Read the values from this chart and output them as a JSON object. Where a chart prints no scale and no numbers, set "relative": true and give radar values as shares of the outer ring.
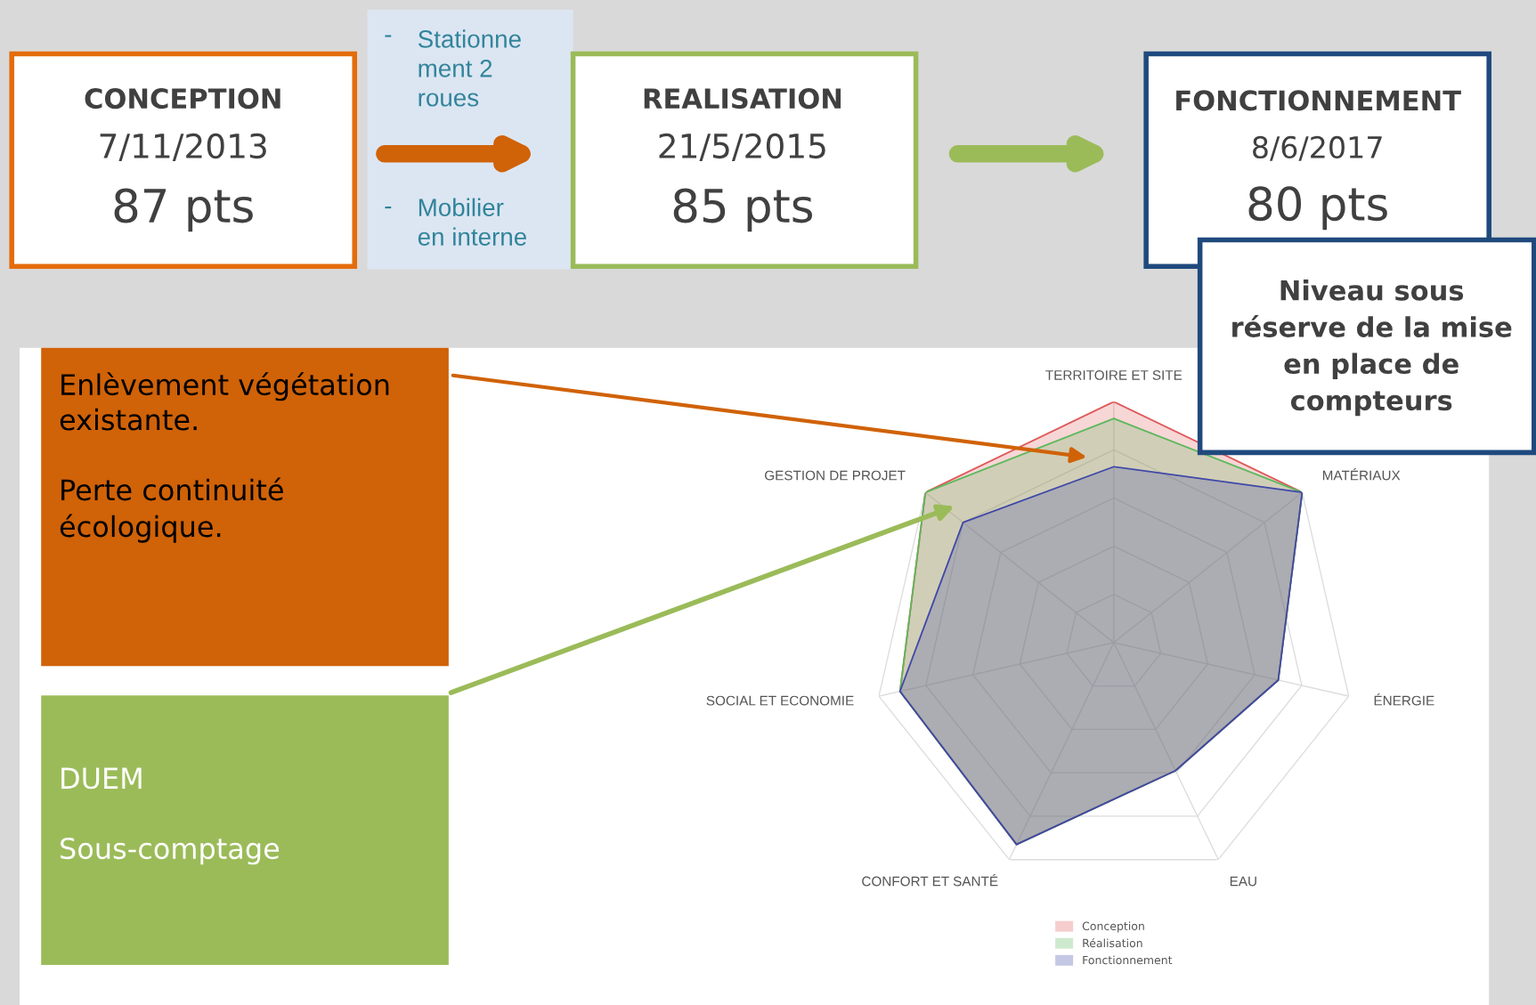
{
  "chart_data": {
    "type": "radar",
    "relative": true,
    "grid": true,
    "legend": "bottom",
    "categories": [
      "TERRITOIRE ET SITE",
      "MATÉRIAUX",
      "ÉNERGIE",
      "EAU",
      "CONFORT ET SANTÉ",
      "SOCIAL ET ECONOMIE",
      "GESTION DE PROJET"
    ],
    "series": [
      {
        "name": "Conception",
        "color": "#e05a5a",
        "values": [
          1.0,
          1.0,
          0.7,
          0.59,
          0.93,
          0.91,
          1.0
        ]
      },
      {
        "name": "Réalisation",
        "color": "#5cb85c",
        "values": [
          0.93,
          1.0,
          0.7,
          0.59,
          0.93,
          0.91,
          1.0
        ]
      },
      {
        "name": "Fonctionnement",
        "color": "#3f48a8",
        "values": [
          0.73,
          1.0,
          0.7,
          0.59,
          0.93,
          0.91,
          0.8
        ]
      }
    ],
    "annotations": [
      "CONCEPTION",
      "7/11/2013",
      "87 pts",
      "REALISATION",
      "21/5/2015",
      "85 pts",
      "FONCTIONNEMENT",
      "8/6/2017",
      "80 pts",
      "-",
      "Stationne\nment 2\nroues",
      "-",
      "Mobilier\nen interne",
      "Niveau sous\nréserve de la mise\nen place de\ncompteurs",
      "Enlèvement végétation\nexistante.\n\nPerte continuité\nécologique.",
      "DUEM\n\nSous-comptage"
    ]
  }
}
